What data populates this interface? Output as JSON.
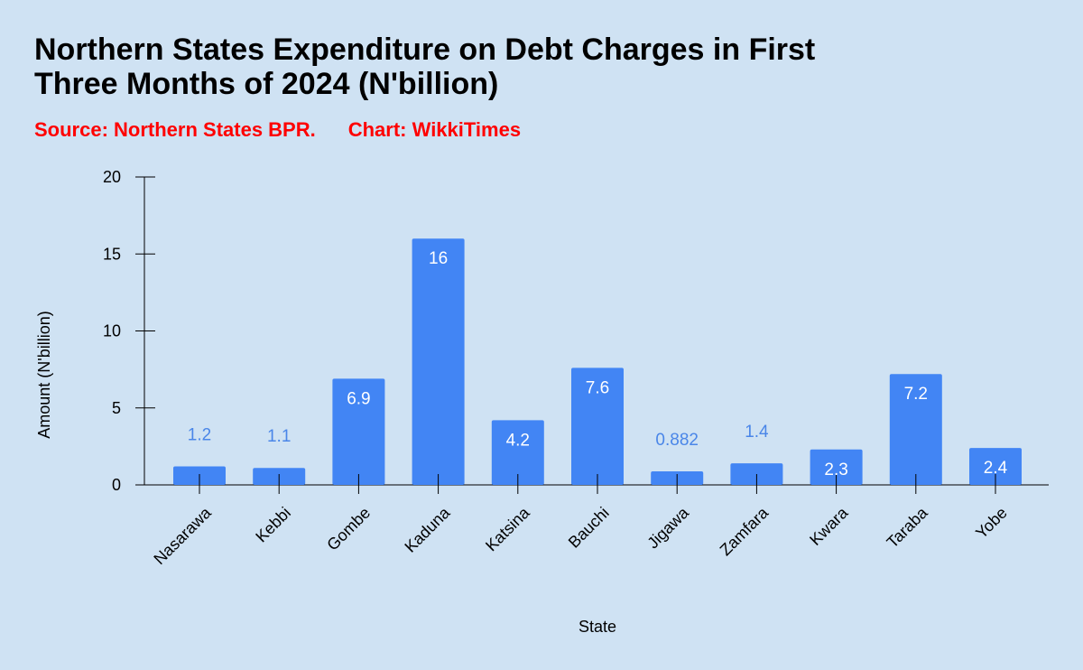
{
  "title_lines": [
    "Northern States Expenditure on Debt Charges in First",
    "Three Months of 2024 (N'billion)"
  ],
  "source": "Source: Northern States BPR.",
  "credit": "Chart: WikkiTimes",
  "colors": {
    "background": "#cfe2f3",
    "bar": "#4285f4",
    "label_outside": "#4a86e8",
    "label_inside": "#ffffff",
    "title": "#000000",
    "source": "#ff0000"
  },
  "chart_data": {
    "type": "bar",
    "title": "Northern States Expenditure on Debt Charges in First Three Months of 2024 (N'billion)",
    "xlabel": "State",
    "ylabel": "Amount (N'billion)",
    "categories": [
      "Nasarawa",
      "Kebbi",
      "Gombe",
      "Kaduna",
      "Katsina",
      "Bauchi",
      "Jigawa",
      "Zamfara",
      "Kwara",
      "Taraba",
      "Yobe"
    ],
    "values": [
      1.2,
      1.1,
      6.9,
      16,
      4.2,
      7.6,
      0.882,
      1.4,
      2.3,
      7.2,
      2.4
    ],
    "value_labels": [
      "1.2",
      "1.1",
      "6.9",
      "16",
      "4.2",
      "7.6",
      "0.882",
      "1.4",
      "2.3",
      "7.2",
      "2.4"
    ],
    "ylim": [
      0,
      20
    ],
    "yticks": [
      0,
      5,
      10,
      15,
      20
    ],
    "grid": false,
    "legend": "none"
  }
}
